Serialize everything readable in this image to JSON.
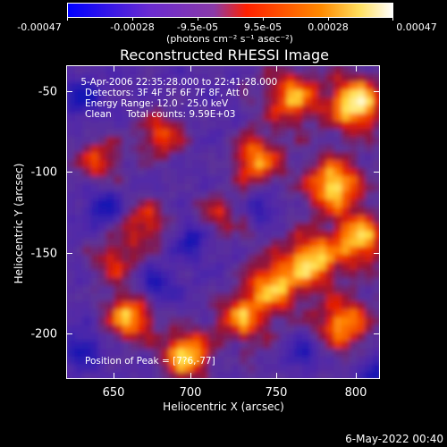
{
  "colorbar": {
    "labels": [
      "-0.00047",
      "-0.00028",
      "-9.5e-05",
      "9.5e-05",
      "0.00028",
      "0.00047"
    ],
    "units": "(photons cm⁻² s⁻¹ asec⁻²)",
    "colors": [
      "#0000ff",
      "#6a2bd0",
      "#8a3aa8",
      "#ff2000",
      "#ff8a00",
      "#ffffff"
    ]
  },
  "plot": {
    "title": "Reconstructed RHESSI Image",
    "info_lines": [
      " 5-Apr-2006 22:35:28.000 to 22:41:28.000",
      "Detectors: 3F 4F 5F 6F 7F 8F, Att 0",
      "Energy Range: 12.0 - 25.0 keV",
      "Clean     Total counts: 9.59E+03"
    ],
    "peak_label": "Position of Peak = [",
    "peak_value": "7?6,-77]"
  },
  "axes": {
    "x_label": "Heliocentric X (arcsec)",
    "y_label": "Heliocentric Y (arcsec)",
    "x_ticks": [
      "650",
      "700",
      "750",
      "800"
    ],
    "y_ticks": [
      "-50",
      "-100",
      "-150",
      "-200"
    ]
  },
  "footer": {
    "date": "6-May-2022 00:40"
  }
}
